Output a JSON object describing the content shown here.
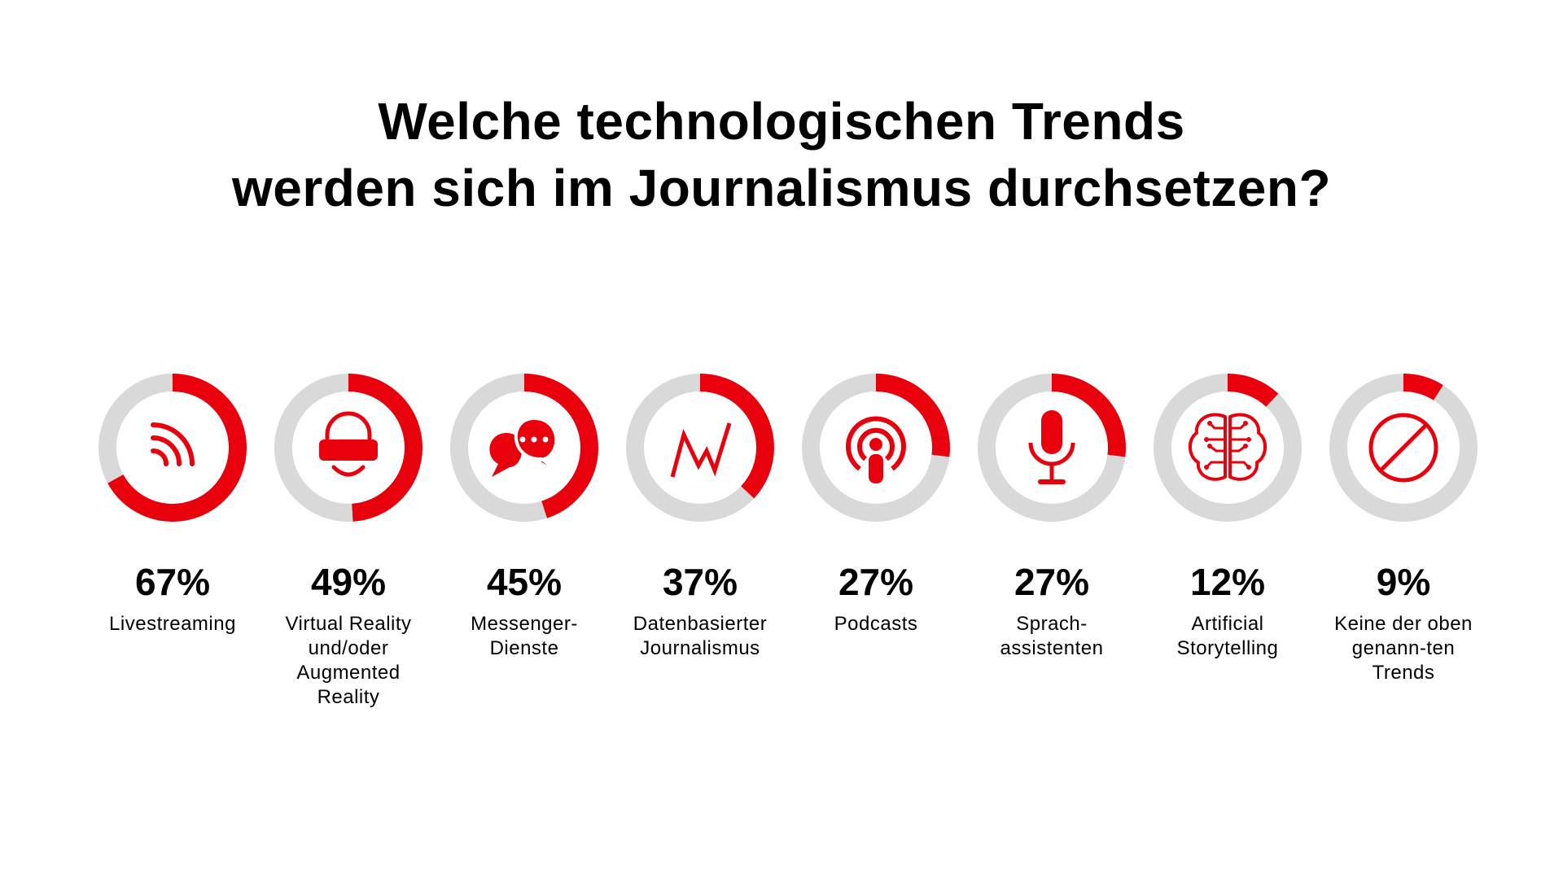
{
  "title": {
    "line1": "Welche technologischen Trends",
    "line2": "werden sich im Journalismus durchsetzen?"
  },
  "colors": {
    "accent": "#e8000d",
    "track": "#d9d9d9",
    "text": "#000000"
  },
  "chart_data": {
    "type": "donut",
    "title": "Welche technologischen Trends werden sich im Journalismus durchsetzen?",
    "unit": "%",
    "categories": [
      {
        "value": 67,
        "value_label": "67%",
        "label": "Livestreaming",
        "icon": "broadcast-icon"
      },
      {
        "value": 49,
        "value_label": "49%",
        "label": "Virtual Reality und/oder Augmented Reality",
        "icon": "vr-headset-icon"
      },
      {
        "value": 45,
        "value_label": "45%",
        "label": "Messenger-Dienste",
        "icon": "chat-bubbles-icon"
      },
      {
        "value": 37,
        "value_label": "37%",
        "label": "Datenbasierter Journalismus",
        "icon": "line-graph-icon"
      },
      {
        "value": 27,
        "value_label": "27%",
        "label": "Podcasts",
        "icon": "podcast-icon"
      },
      {
        "value": 27,
        "value_label": "27%",
        "label": "Sprach-assistenten",
        "icon": "microphone-icon"
      },
      {
        "value": 12,
        "value_label": "12%",
        "label": "Artificial Storytelling",
        "icon": "brain-circuit-icon"
      },
      {
        "value": 9,
        "value_label": "9%",
        "label": "Keine der oben genann-ten Trends",
        "icon": "no-sign-icon"
      }
    ]
  }
}
